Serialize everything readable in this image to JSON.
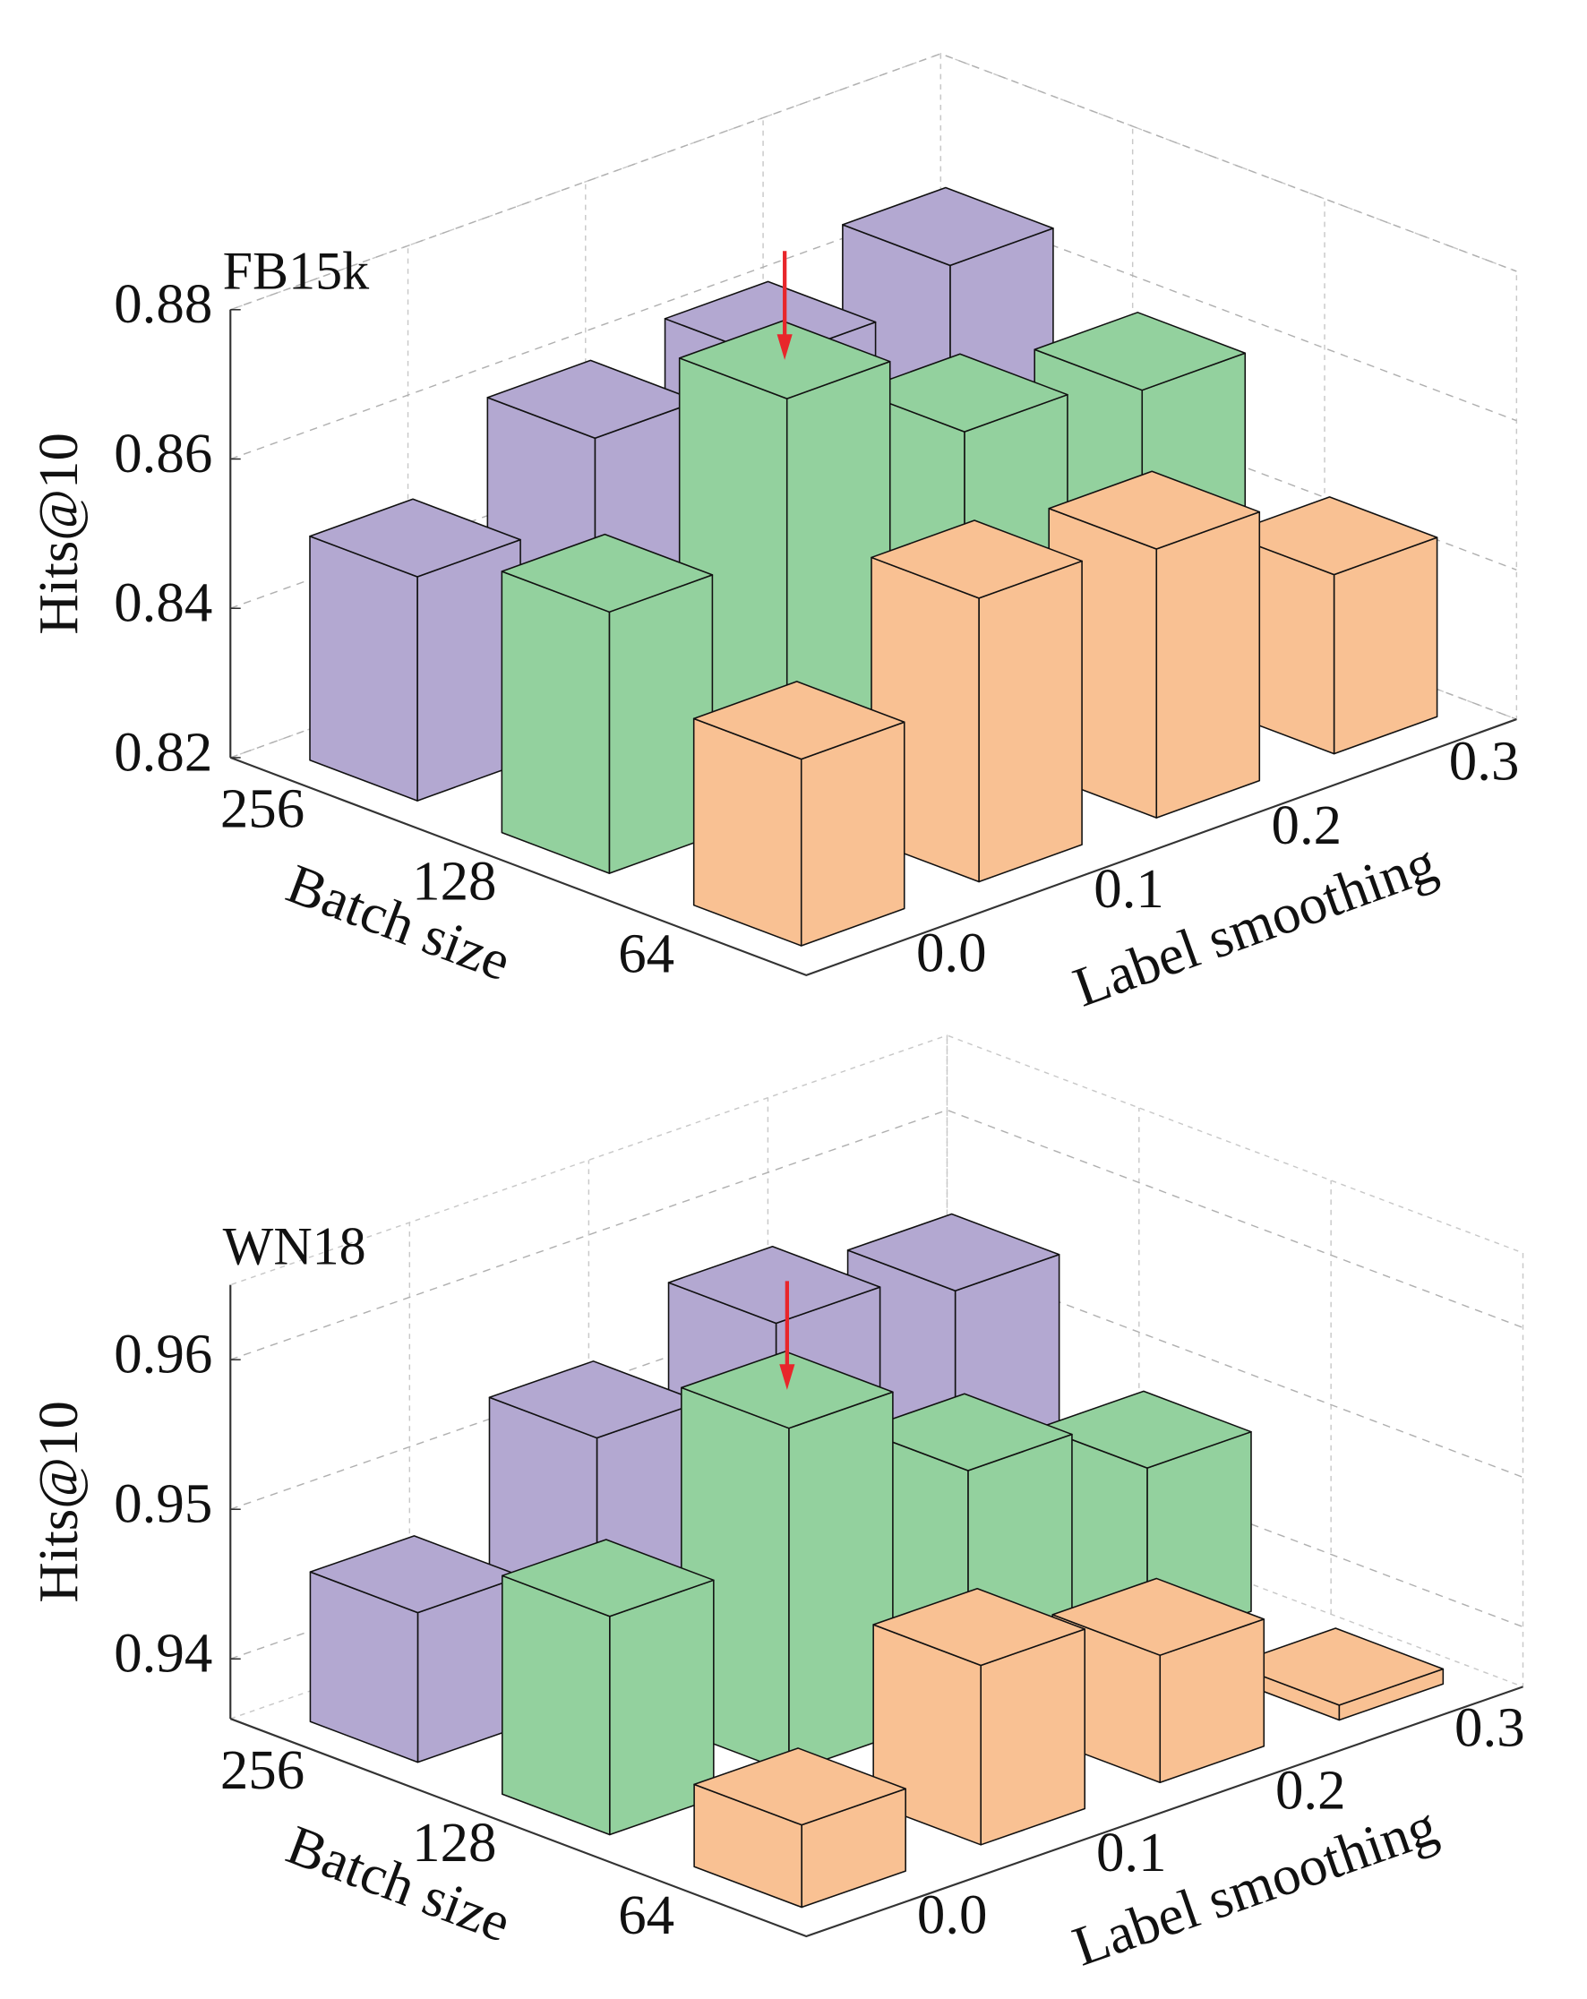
{
  "chart_data": [
    {
      "type": "bar3d",
      "title": "FB15k",
      "ylabel": "Hits@10",
      "row_label": "Batch size",
      "col_label": "Label smoothing",
      "categories": [
        "0.0",
        "0.1",
        "0.2",
        "0.3"
      ],
      "series": [
        {
          "name": "256",
          "color": "#b3a8d1",
          "values": [
            0.85,
            0.86,
            0.862,
            0.866
          ]
        },
        {
          "name": "128",
          "color": "#93d19e",
          "values": [
            0.855,
            0.875,
            0.862,
            0.859
          ]
        },
        {
          "name": "64",
          "color": "#f9c193",
          "values": [
            0.845,
            0.858,
            0.856,
            0.844
          ]
        }
      ],
      "ylim": [
        0.82,
        0.88
      ],
      "yticks": [
        0.82,
        0.84,
        0.86,
        0.88
      ],
      "grid": true
    },
    {
      "type": "bar3d",
      "title": "WN18",
      "ylabel": "Hits@10",
      "row_label": "Batch size",
      "col_label": "Label smoothing",
      "categories": [
        "0.0",
        "0.1",
        "0.2",
        "0.3"
      ],
      "series": [
        {
          "name": "256",
          "color": "#b3a8d1",
          "values": [
            0.946,
            0.9535,
            0.957,
            0.955
          ]
        },
        {
          "name": "128",
          "color": "#93d19e",
          "values": [
            0.9506,
            0.959,
            0.952,
            0.948
          ]
        },
        {
          "name": "64",
          "color": "#f9c193",
          "values": [
            0.9415,
            0.948,
            0.9445,
            0.937
          ]
        }
      ],
      "ylim": [
        0.936,
        0.965
      ],
      "yticks": [
        0.94,
        0.95,
        0.96
      ],
      "grid": true
    }
  ]
}
